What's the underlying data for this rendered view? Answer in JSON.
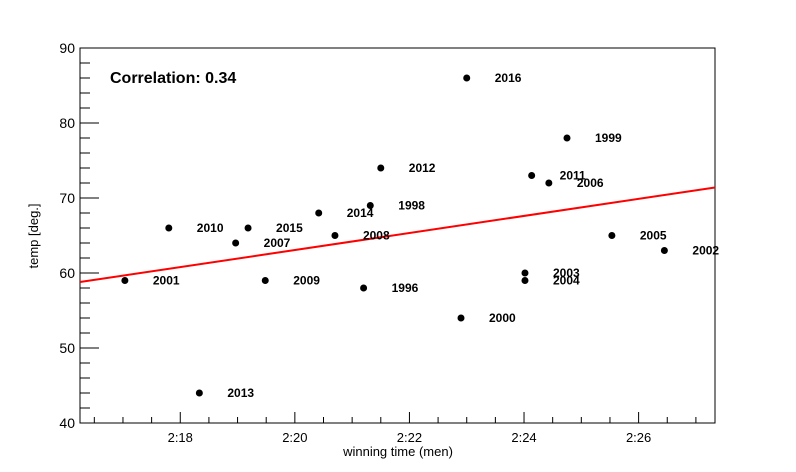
{
  "chart_data": {
    "type": "scatter",
    "annotation": "Correlation: 0.34",
    "xlabel": "winning time (men)",
    "ylabel": "temp [deg.]",
    "xlim": [
      "2:16:15",
      "2:27:20"
    ],
    "ylim": [
      40,
      90
    ],
    "xticks": [
      "2:18",
      "2:20",
      "2:22",
      "2:24",
      "2:26"
    ],
    "yticks": [
      40,
      50,
      60,
      70,
      80,
      90
    ],
    "grid": false,
    "points": [
      {
        "label": "1996",
        "x": "2:21:12",
        "y": 58
      },
      {
        "label": "1998",
        "x": "2:21:19",
        "y": 69
      },
      {
        "label": "1999",
        "x": "2:24:45",
        "y": 78
      },
      {
        "label": "2000",
        "x": "2:22:54",
        "y": 54
      },
      {
        "label": "2001",
        "x": "2:17:02",
        "y": 59
      },
      {
        "label": "2002",
        "x": "2:26:27",
        "y": 63
      },
      {
        "label": "2003",
        "x": "2:24:01",
        "y": 60
      },
      {
        "label": "2004",
        "x": "2:24:01",
        "y": 59
      },
      {
        "label": "2005",
        "x": "2:25:32",
        "y": 65
      },
      {
        "label": "2006",
        "x": "2:24:26",
        "y": 72
      },
      {
        "label": "2007",
        "x": "2:18:58",
        "y": 64
      },
      {
        "label": "2008",
        "x": "2:20:42",
        "y": 65
      },
      {
        "label": "2009",
        "x": "2:19:29",
        "y": 59
      },
      {
        "label": "2010",
        "x": "2:17:48",
        "y": 66
      },
      {
        "label": "2011",
        "x": "2:24:08",
        "y": 73
      },
      {
        "label": "2012",
        "x": "2:21:30",
        "y": 74
      },
      {
        "label": "2013",
        "x": "2:18:20",
        "y": 44
      },
      {
        "label": "2014",
        "x": "2:20:25",
        "y": 68
      },
      {
        "label": "2015",
        "x": "2:19:11",
        "y": 66
      },
      {
        "label": "2016",
        "x": "2:23:00",
        "y": 86
      }
    ],
    "fit_line": {
      "x": [
        "2:16:15",
        "2:27:20"
      ],
      "y": [
        58.8,
        71.4
      ]
    },
    "colors": {
      "points": "#000000",
      "fit_line": "#ff0000",
      "axes": "#000000"
    }
  }
}
